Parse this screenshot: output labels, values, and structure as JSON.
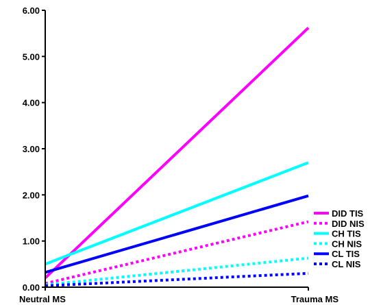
{
  "chart_data": {
    "type": "line",
    "title": "",
    "xlabel": "",
    "ylabel": "",
    "categories": [
      "Neutral MS",
      "Trauma MS"
    ],
    "y_tick_labels": [
      "0.00",
      "1.00",
      "2.00",
      "3.00",
      "4.00",
      "5.00",
      "6.00"
    ],
    "ylim": [
      0,
      6
    ],
    "grid": false,
    "legend_position": "bottom-right",
    "series": [
      {
        "name": "DID TIS",
        "values": [
          0.2,
          5.62
        ],
        "color": "#ff00ff",
        "dash": "solid"
      },
      {
        "name": "DID NIS",
        "values": [
          0.08,
          1.42
        ],
        "color": "#ff00ff",
        "dash": "dotted"
      },
      {
        "name": "CH TIS",
        "values": [
          0.5,
          2.7
        ],
        "color": "#00ffff",
        "dash": "solid"
      },
      {
        "name": "CH NIS",
        "values": [
          0.05,
          0.63
        ],
        "color": "#00ffff",
        "dash": "dotted"
      },
      {
        "name": "CL TIS",
        "values": [
          0.32,
          1.98
        ],
        "color": "#0000ff",
        "dash": "solid"
      },
      {
        "name": "CL NIS",
        "values": [
          0.03,
          0.3
        ],
        "color": "#0000ff",
        "dash": "dotted"
      }
    ]
  }
}
